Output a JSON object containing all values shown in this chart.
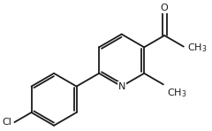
{
  "background": "#ffffff",
  "line_color": "#1a1a1a",
  "line_width": 1.3,
  "font_size": 8.0,
  "figsize": [
    2.4,
    1.48
  ],
  "dpi": 100,
  "xlim": [
    0,
    2.4
  ],
  "ylim": [
    0,
    1.48
  ]
}
